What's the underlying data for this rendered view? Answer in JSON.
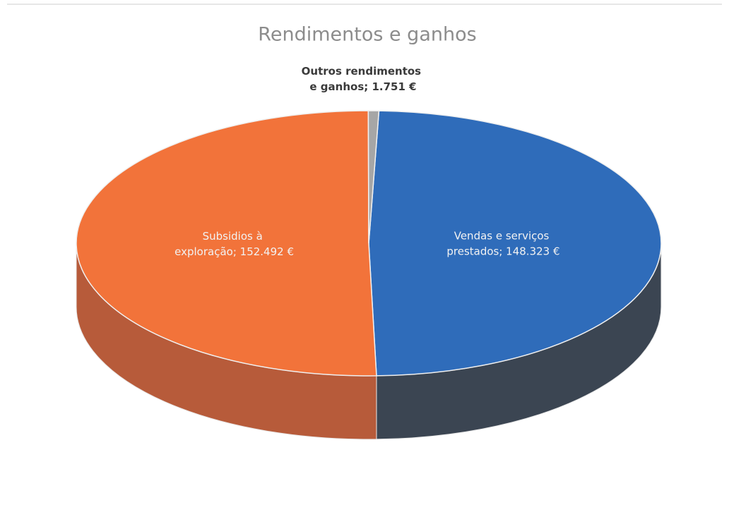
{
  "chart_data": {
    "type": "pie",
    "title": "Rendimentos e ganhos",
    "labels": [
      "Vendas e serviços prestados; 148.323 €",
      "Subsidios à exploração; 152.492 €",
      "Outros rendimentos e ganhos; 1.751 €"
    ],
    "values": [
      148323,
      152492,
      1751
    ],
    "colors": [
      "#2f6cba",
      "#f2733a",
      "#a6a6a6"
    ],
    "side_colors": [
      "#3b4552",
      "#b75b3a",
      "#7a7a7a"
    ]
  }
}
